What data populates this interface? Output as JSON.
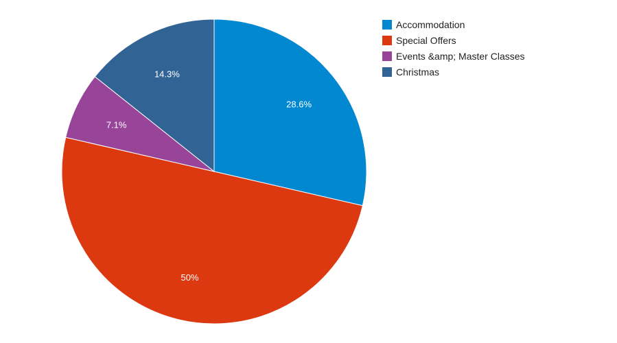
{
  "chart_data": {
    "type": "pie",
    "title": "",
    "slices": [
      {
        "label": "Accommodation",
        "value": 28.6,
        "value_label": "28.6%",
        "color": "#0288d1"
      },
      {
        "label": "Special Offers",
        "value": 50,
        "value_label": "50%",
        "color": "#dd3911"
      },
      {
        "label": "Events &amp; Master Classes",
        "value": 7.1,
        "value_label": "7.1%",
        "color": "#984499"
      },
      {
        "label": "Christmas",
        "value": 14.3,
        "value_label": "14.3%",
        "color": "#316395"
      }
    ],
    "legend_position": "top-right",
    "start_angle": "top, clockwise"
  }
}
